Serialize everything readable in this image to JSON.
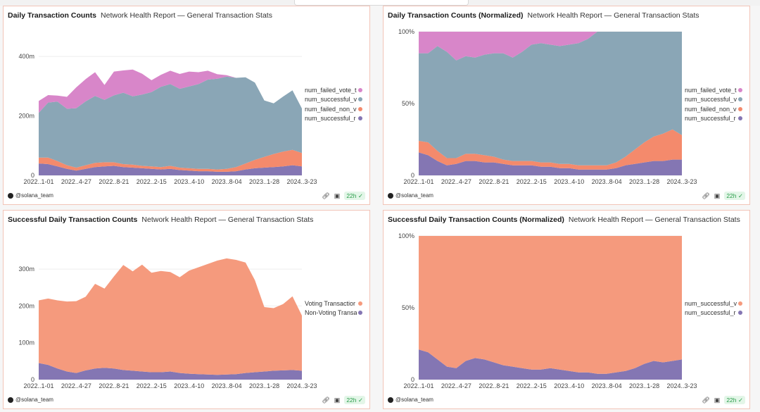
{
  "colors": {
    "failed_vote": "#d886c9",
    "successful_vote": "#8aa6b6",
    "failed_non_vote": "#f48a6c",
    "successful_non_vote": "#8476b3",
    "voting_orange": "#f59a7d"
  },
  "author": "@solana_team",
  "refresh": "22h",
  "footer_icons": {
    "link": "link-icon",
    "camera": "camera-icon",
    "check": "check-icon"
  },
  "chart_data": [
    {
      "id": "c1",
      "type": "area",
      "stacked": true,
      "normalized": false,
      "title": "Daily Transaction Counts",
      "subtitle": "Network Health Report — General Transaction Stats",
      "x_tick_labels": [
        "2022..1-01",
        "2022..4-27",
        "2022..8-21",
        "2022..2-15",
        "2023..4-10",
        "2023..8-04",
        "2023..1-28",
        "2024..3-23"
      ],
      "y_ticks": [
        0,
        200,
        400
      ],
      "y_tick_labels": [
        "0",
        "200m",
        "400m"
      ],
      "ylim": [
        0,
        450
      ],
      "unit": "millions",
      "series": [
        {
          "name": "num_successful_non_vote",
          "legend": "num_successful_r",
          "color_key": "successful_non_vote",
          "values": [
            40,
            38,
            30,
            22,
            16,
            22,
            28,
            30,
            32,
            28,
            26,
            24,
            22,
            20,
            22,
            18,
            16,
            14,
            14,
            12,
            12,
            14,
            20,
            24,
            26,
            28,
            30,
            34,
            30
          ]
        },
        {
          "name": "num_failed_non_vote",
          "legend": "num_failed_non_v",
          "color_key": "failed_non_vote",
          "values": [
            20,
            22,
            18,
            12,
            10,
            12,
            14,
            14,
            12,
            10,
            10,
            8,
            8,
            8,
            10,
            8,
            8,
            8,
            8,
            8,
            10,
            14,
            20,
            28,
            36,
            44,
            50,
            52,
            45
          ]
        },
        {
          "name": "num_successful_vote",
          "legend": "num_successful_v",
          "color_key": "successful_vote",
          "values": [
            150,
            185,
            200,
            190,
            200,
            215,
            225,
            210,
            225,
            240,
            230,
            240,
            250,
            270,
            275,
            265,
            275,
            285,
            300,
            305,
            310,
            300,
            290,
            260,
            190,
            170,
            185,
            200,
            150
          ]
        },
        {
          "name": "num_failed_vote",
          "legend": "num_failed_vote_t",
          "color_key": "failed_vote",
          "values": [
            40,
            25,
            20,
            40,
            70,
            75,
            80,
            50,
            80,
            75,
            90,
            70,
            40,
            40,
            45,
            50,
            50,
            40,
            30,
            15,
            5,
            0,
            0,
            0,
            0,
            0,
            0,
            0,
            0
          ]
        }
      ]
    },
    {
      "id": "c2",
      "type": "area",
      "stacked": true,
      "normalized": true,
      "title": "Daily Transaction Counts (Normalized)",
      "subtitle": "Network Health Report — General Transaction Stats",
      "x_tick_labels": [
        "2022..1-01",
        "2022..4-27",
        "2022..8-21",
        "2022..2-15",
        "2023..4-10",
        "2023..8-04",
        "2023..1-28",
        "2024..3-23"
      ],
      "y_ticks": [
        0,
        50,
        100
      ],
      "y_tick_labels": [
        "0",
        "50%",
        "100%"
      ],
      "ylim": [
        0,
        100
      ],
      "unit": "percent",
      "series": [
        {
          "name": "num_successful_non_vote",
          "legend": "num_successful_r",
          "color_key": "successful_non_vote",
          "values": [
            16,
            14,
            10,
            7,
            8,
            10,
            10,
            9,
            9,
            8,
            7,
            7,
            7,
            6,
            6,
            5,
            5,
            4,
            4,
            4,
            4,
            5,
            7,
            8,
            9,
            10,
            10,
            11,
            11
          ]
        },
        {
          "name": "num_failed_non_vote",
          "legend": "num_failed_non_v",
          "color_key": "failed_non_vote",
          "values": [
            8,
            9,
            7,
            5,
            4,
            5,
            5,
            5,
            4,
            3,
            3,
            3,
            3,
            3,
            3,
            3,
            3,
            3,
            3,
            3,
            3,
            4,
            6,
            10,
            14,
            17,
            19,
            21,
            17
          ]
        },
        {
          "name": "num_successful_vote",
          "legend": "num_successful_v",
          "color_key": "successful_vote",
          "values": [
            61,
            62,
            73,
            74,
            68,
            68,
            67,
            70,
            72,
            74,
            72,
            76,
            81,
            83,
            82,
            82,
            83,
            85,
            88,
            93,
            93,
            91,
            87,
            82,
            77,
            73,
            71,
            68,
            72
          ]
        },
        {
          "name": "num_failed_vote",
          "legend": "num_failed_vote_t",
          "color_key": "failed_vote",
          "values": [
            15,
            15,
            10,
            14,
            20,
            17,
            18,
            16,
            15,
            15,
            18,
            14,
            9,
            8,
            9,
            10,
            9,
            8,
            5,
            0,
            0,
            0,
            0,
            0,
            0,
            0,
            0,
            0,
            0
          ]
        }
      ]
    },
    {
      "id": "c3",
      "type": "area",
      "stacked": true,
      "normalized": false,
      "title": "Successful Daily Transaction Counts",
      "subtitle": "Network Health Report — General Transaction Stats",
      "x_tick_labels": [
        "2022..1-01",
        "2022..4-27",
        "2022..8-21",
        "2022..2-15",
        "2023..4-10",
        "2023..8-04",
        "2023..1-28",
        "2024..3-23"
      ],
      "y_ticks": [
        0,
        100,
        200,
        300
      ],
      "y_tick_labels": [
        "0",
        "100m",
        "200m",
        "300m"
      ],
      "ylim": [
        0,
        390
      ],
      "unit": "millions",
      "series": [
        {
          "name": "Non-Voting Transactions",
          "legend": "Non-Voting Transa",
          "color_key": "successful_non_vote",
          "values": [
            45,
            40,
            30,
            22,
            18,
            25,
            30,
            32,
            30,
            26,
            24,
            22,
            20,
            20,
            22,
            18,
            16,
            15,
            14,
            13,
            14,
            15,
            18,
            20,
            22,
            24,
            25,
            26,
            24
          ]
        },
        {
          "name": "Voting Transactions",
          "legend": "Voting Transactior",
          "color_key": "voting_orange",
          "values": [
            170,
            180,
            185,
            190,
            195,
            200,
            230,
            215,
            250,
            285,
            270,
            290,
            270,
            275,
            270,
            260,
            280,
            290,
            300,
            310,
            315,
            310,
            300,
            250,
            175,
            170,
            180,
            200,
            150
          ]
        }
      ]
    },
    {
      "id": "c4",
      "type": "area",
      "stacked": true,
      "normalized": true,
      "title": "Successful Daily Transaction Counts (Normalized)",
      "subtitle": "Network Health Report — General Transaction Stats",
      "x_tick_labels": [
        "2022..1-01",
        "2022..4-27",
        "2022..8-21",
        "2022..2-15",
        "2023..4-10",
        "2023..8-04",
        "2023..1-28",
        "2024..3-23"
      ],
      "y_ticks": [
        0,
        50,
        100
      ],
      "y_tick_labels": [
        "0",
        "50%",
        "100%"
      ],
      "ylim": [
        0,
        100
      ],
      "unit": "percent",
      "series": [
        {
          "name": "num_successful_non_vote",
          "legend": "num_successful_r",
          "color_key": "successful_non_vote",
          "values": [
            21,
            19,
            14,
            9,
            8,
            13,
            15,
            14,
            12,
            10,
            9,
            8,
            7,
            7,
            8,
            7,
            6,
            5,
            5,
            4,
            4,
            5,
            6,
            8,
            11,
            13,
            12,
            13,
            14
          ]
        },
        {
          "name": "num_successful_vote",
          "legend": "num_successful_v",
          "color_key": "voting_orange",
          "values": [
            79,
            81,
            86,
            91,
            92,
            87,
            85,
            86,
            88,
            90,
            91,
            92,
            93,
            93,
            92,
            93,
            94,
            95,
            95,
            96,
            96,
            95,
            94,
            92,
            89,
            87,
            88,
            87,
            86
          ]
        }
      ]
    }
  ]
}
